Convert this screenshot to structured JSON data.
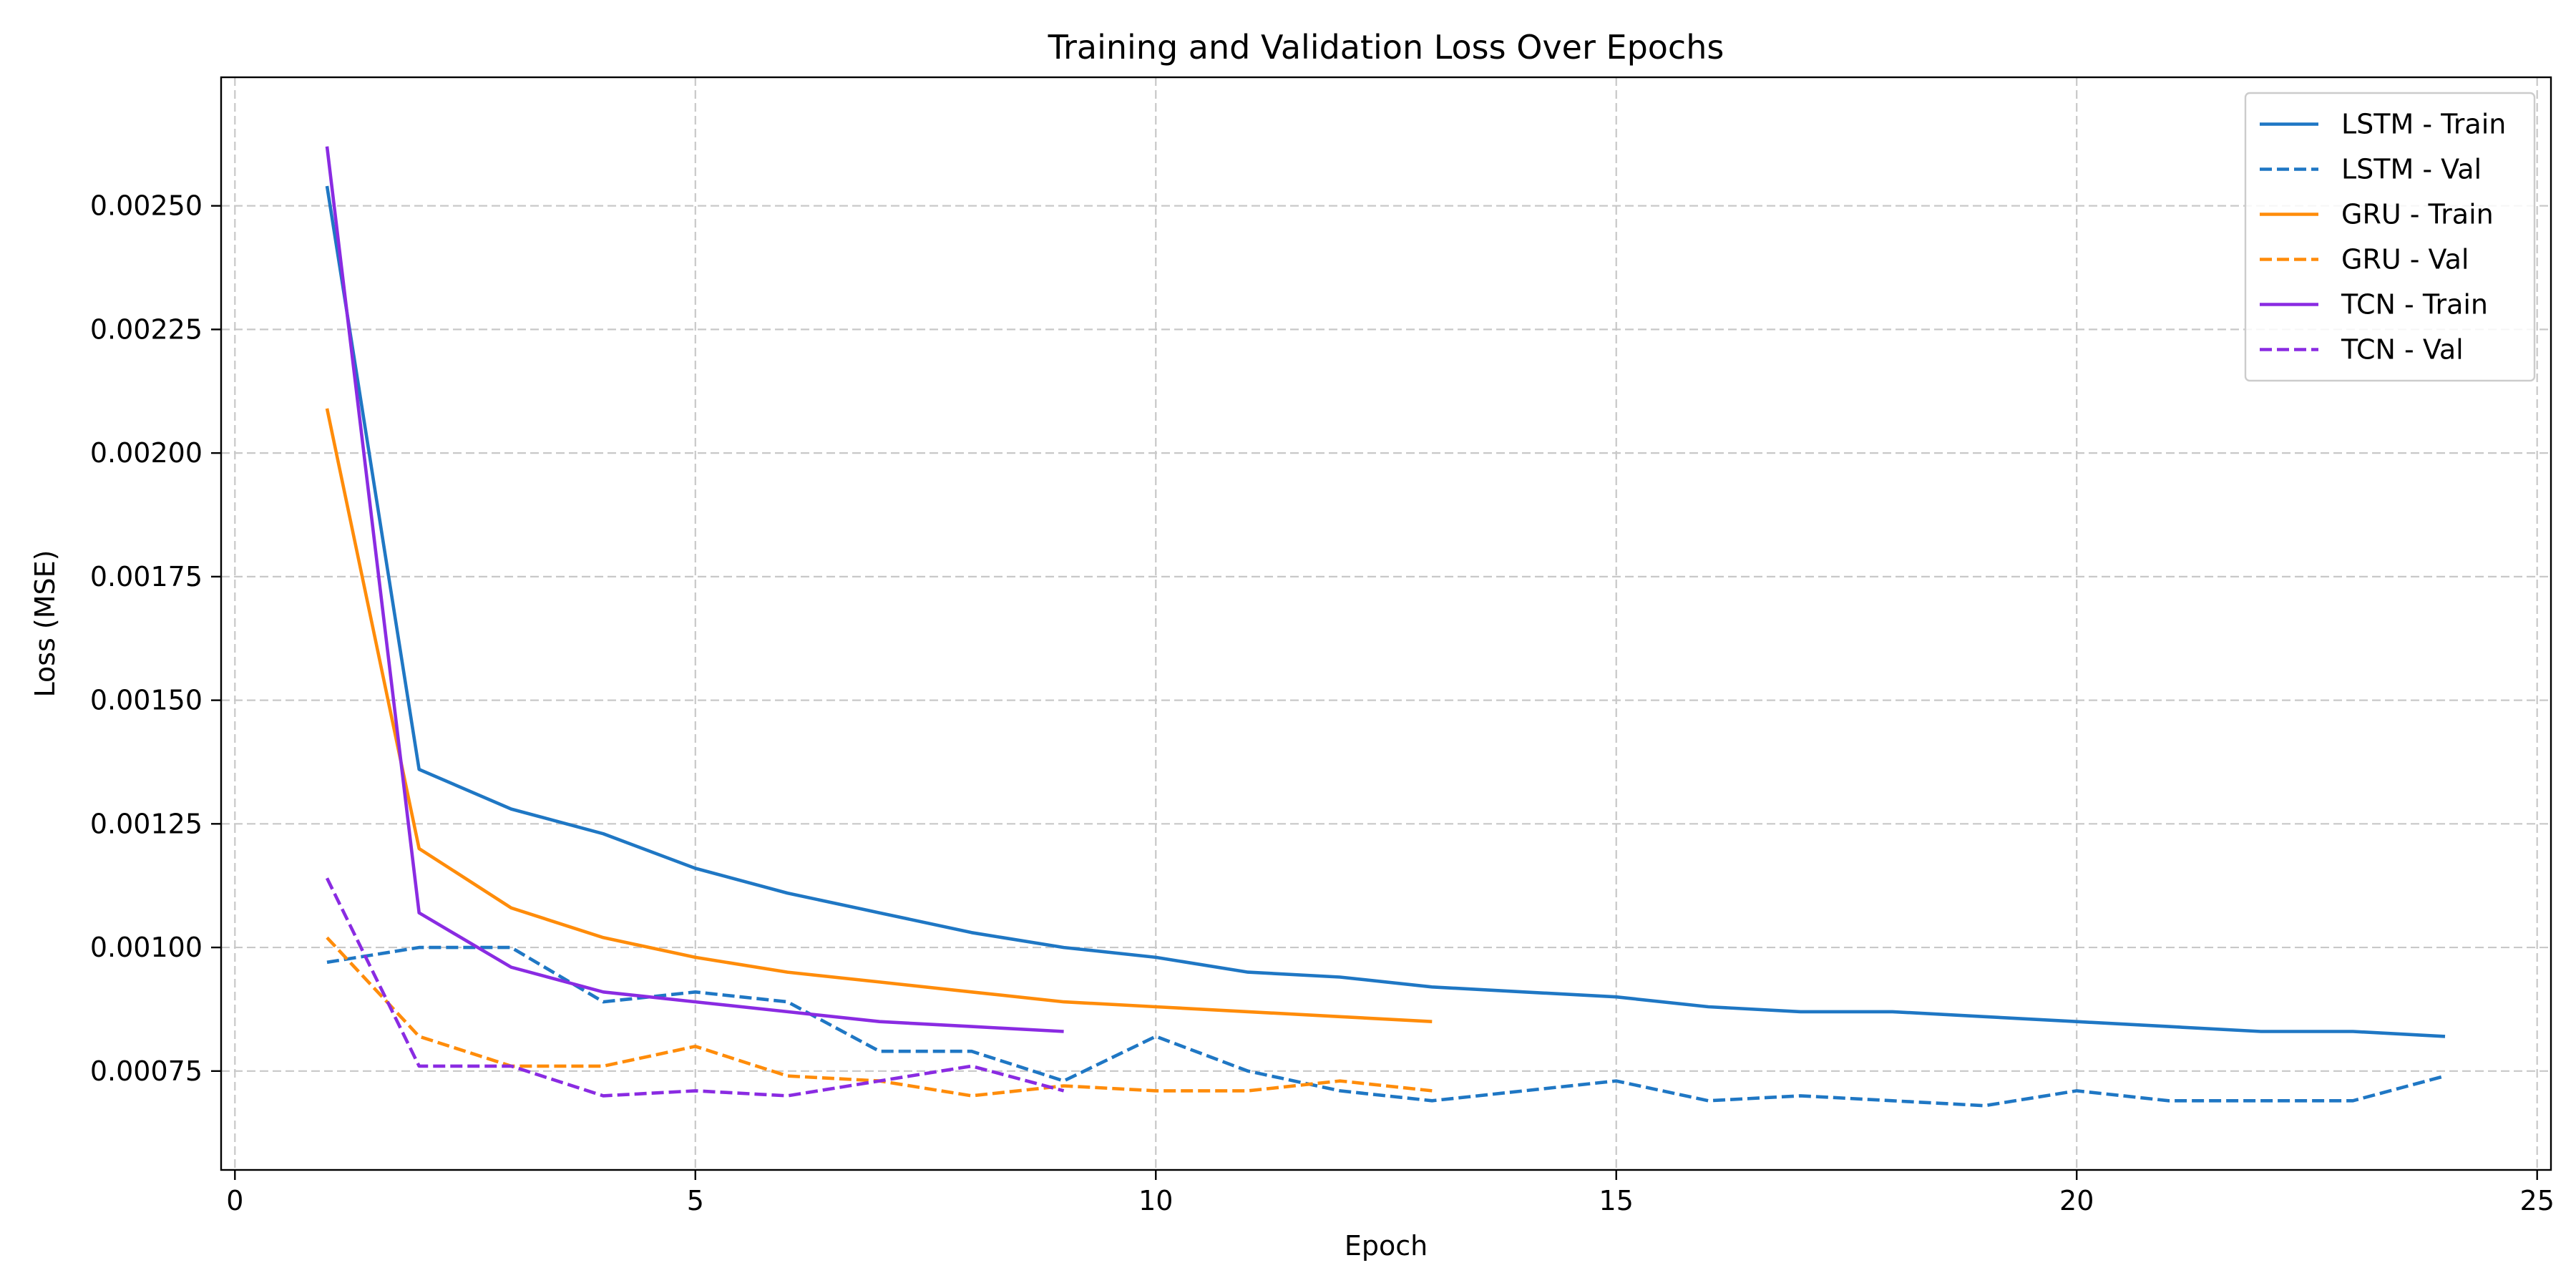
{
  "chart_data": {
    "type": "line",
    "title": "Training and Validation Loss Over Epochs",
    "xlabel": "Epoch",
    "ylabel": "Loss (MSE)",
    "xlim": [
      -0.15,
      25.15
    ],
    "ylim": [
      0.00055,
      0.00276
    ],
    "xticks": [
      0,
      5,
      10,
      15,
      20,
      25
    ],
    "xtick_labels": [
      "0",
      "5",
      "10",
      "15",
      "20",
      "25"
    ],
    "yticks": [
      0.00075,
      0.001,
      0.00125,
      0.0015,
      0.00175,
      0.002,
      0.00225,
      0.0025
    ],
    "ytick_labels": [
      "0.00075",
      "0.00100",
      "0.00125",
      "0.00150",
      "0.00175",
      "0.00200",
      "0.00225",
      "0.00250"
    ],
    "grid": true,
    "legend_position": "top-right",
    "series": [
      {
        "name": "LSTM - Train",
        "color": "#1f77c4",
        "style": "solid",
        "x": [
          1,
          2,
          3,
          4,
          5,
          6,
          7,
          8,
          9,
          10,
          11,
          12,
          13,
          14,
          15,
          16,
          17,
          18,
          19,
          20,
          21,
          22,
          23,
          24
        ],
        "y": [
          0.00254,
          0.00136,
          0.00128,
          0.00123,
          0.00116,
          0.00111,
          0.00107,
          0.00103,
          0.001,
          0.00098,
          0.00095,
          0.00094,
          0.00092,
          0.00091,
          0.0009,
          0.00088,
          0.00087,
          0.00087,
          0.00086,
          0.00085,
          0.00084,
          0.00083,
          0.00083,
          0.00082
        ]
      },
      {
        "name": "LSTM - Val",
        "color": "#1f77c4",
        "style": "dashed",
        "x": [
          1,
          2,
          3,
          4,
          5,
          6,
          7,
          8,
          9,
          10,
          11,
          12,
          13,
          14,
          15,
          16,
          17,
          18,
          19,
          20,
          21,
          22,
          23,
          24
        ],
        "y": [
          0.00097,
          0.001,
          0.001,
          0.00089,
          0.00091,
          0.00089,
          0.00079,
          0.00079,
          0.00073,
          0.00082,
          0.00075,
          0.00071,
          0.00069,
          0.00071,
          0.00073,
          0.00069,
          0.0007,
          0.00069,
          0.00068,
          0.00071,
          0.00069,
          0.00069,
          0.00069,
          0.00074
        ]
      },
      {
        "name": "GRU - Train",
        "color": "#ff8c0a",
        "style": "solid",
        "x": [
          1,
          2,
          3,
          4,
          5,
          6,
          7,
          8,
          9,
          10,
          11,
          12,
          13
        ],
        "y": [
          0.00209,
          0.0012,
          0.00108,
          0.00102,
          0.00098,
          0.00095,
          0.00093,
          0.00091,
          0.00089,
          0.00088,
          0.00087,
          0.00086,
          0.00085
        ]
      },
      {
        "name": "GRU - Val",
        "color": "#ff8c0a",
        "style": "dashed",
        "x": [
          1,
          2,
          3,
          4,
          5,
          6,
          7,
          8,
          9,
          10,
          11,
          12,
          13
        ],
        "y": [
          0.00102,
          0.00082,
          0.00076,
          0.00076,
          0.0008,
          0.00074,
          0.00073,
          0.0007,
          0.00072,
          0.00071,
          0.00071,
          0.00073,
          0.00071
        ]
      },
      {
        "name": "TCN - Train",
        "color": "#8a2be2",
        "style": "solid",
        "x": [
          1,
          2,
          3,
          4,
          5,
          6,
          7,
          8,
          9
        ],
        "y": [
          0.00262,
          0.00107,
          0.00096,
          0.00091,
          0.00089,
          0.00087,
          0.00085,
          0.00084,
          0.00083
        ]
      },
      {
        "name": "TCN - Val",
        "color": "#8a2be2",
        "style": "dashed",
        "x": [
          1,
          2,
          3,
          4,
          5,
          6,
          7,
          8,
          9
        ],
        "y": [
          0.00114,
          0.00076,
          0.00076,
          0.0007,
          0.00071,
          0.0007,
          0.00073,
          0.00076,
          0.00071
        ]
      }
    ]
  }
}
